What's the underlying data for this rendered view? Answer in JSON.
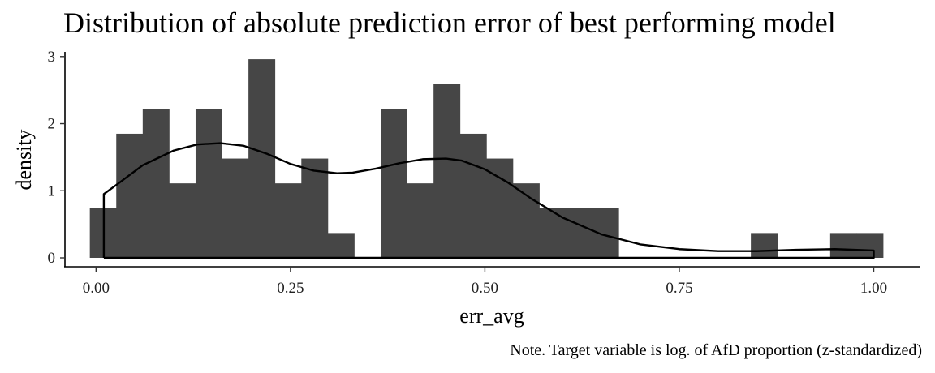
{
  "chart_data": {
    "type": "bar",
    "title": "Distribution of absolute prediction error of best performing model",
    "xlabel": "err_avg",
    "ylabel": "density",
    "caption": "Note. Target variable is log. of AfD proportion (z-standardized)",
    "xlim": [
      -0.04,
      1.06
    ],
    "ylim": [
      0,
      3.07
    ],
    "x_ticks": [
      {
        "value": 0.0,
        "label": "0.00"
      },
      {
        "value": 0.25,
        "label": "0.25"
      },
      {
        "value": 0.5,
        "label": "0.50"
      },
      {
        "value": 0.75,
        "label": "0.75"
      },
      {
        "value": 1.0,
        "label": "1.00"
      }
    ],
    "y_ticks": [
      {
        "value": 0,
        "label": "0"
      },
      {
        "value": 1,
        "label": "1"
      },
      {
        "value": 2,
        "label": "2"
      },
      {
        "value": 3,
        "label": "3"
      }
    ],
    "bin_width": 0.034,
    "bins": [
      {
        "x": -0.008,
        "density": 0.74
      },
      {
        "x": 0.026,
        "density": 1.85
      },
      {
        "x": 0.06,
        "density": 2.22
      },
      {
        "x": 0.094,
        "density": 1.11
      },
      {
        "x": 0.128,
        "density": 2.22
      },
      {
        "x": 0.162,
        "density": 1.48
      },
      {
        "x": 0.196,
        "density": 2.96
      },
      {
        "x": 0.23,
        "density": 1.11
      },
      {
        "x": 0.264,
        "density": 1.48
      },
      {
        "x": 0.298,
        "density": 0.37
      },
      {
        "x": 0.332,
        "density": 0.0
      },
      {
        "x": 0.366,
        "density": 2.22
      },
      {
        "x": 0.4,
        "density": 1.11
      },
      {
        "x": 0.434,
        "density": 2.59
      },
      {
        "x": 0.468,
        "density": 1.85
      },
      {
        "x": 0.502,
        "density": 1.48
      },
      {
        "x": 0.536,
        "density": 1.11
      },
      {
        "x": 0.57,
        "density": 0.74
      },
      {
        "x": 0.604,
        "density": 0.74
      },
      {
        "x": 0.638,
        "density": 0.74
      },
      {
        "x": 0.842,
        "density": 0.37
      },
      {
        "x": 0.944,
        "density": 0.37
      },
      {
        "x": 0.978,
        "density": 0.37
      }
    ],
    "density_curve": {
      "x": [
        0.01,
        0.01,
        0.03,
        0.06,
        0.1,
        0.13,
        0.16,
        0.19,
        0.22,
        0.25,
        0.28,
        0.31,
        0.33,
        0.36,
        0.39,
        0.42,
        0.45,
        0.47,
        0.5,
        0.53,
        0.56,
        0.6,
        0.65,
        0.7,
        0.75,
        0.8,
        0.85,
        0.9,
        0.95,
        1.0,
        1.0,
        0.01
      ],
      "y": [
        0.0,
        0.95,
        1.12,
        1.38,
        1.6,
        1.69,
        1.71,
        1.67,
        1.55,
        1.4,
        1.3,
        1.26,
        1.27,
        1.33,
        1.41,
        1.47,
        1.48,
        1.45,
        1.32,
        1.12,
        0.88,
        0.6,
        0.35,
        0.2,
        0.13,
        0.1,
        0.1,
        0.12,
        0.13,
        0.11,
        0.0,
        0.0
      ]
    },
    "colors": {
      "bar": "#464646",
      "curve": "#000000",
      "axis": "#000000"
    },
    "grid": false,
    "legend": "none"
  }
}
